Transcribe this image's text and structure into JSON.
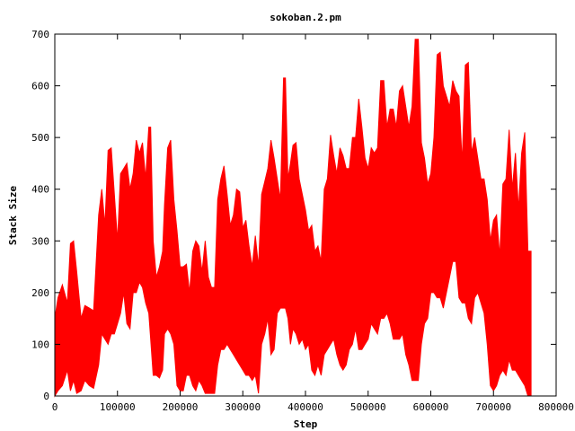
{
  "chart_data": {
    "type": "line",
    "title": "sokoban.2.pm",
    "xlabel": "Step",
    "ylabel": "Stack Size",
    "xlim": [
      0,
      800000
    ],
    "ylim": [
      0,
      700
    ],
    "xticks": [
      0,
      100000,
      200000,
      300000,
      400000,
      500000,
      600000,
      700000,
      800000
    ],
    "yticks": [
      0,
      100,
      200,
      300,
      400,
      500,
      600,
      700
    ],
    "grid": false,
    "legend": "none",
    "series": [
      {
        "color": "#ff0000",
        "x_end": 760000,
        "upper": [
          [
            0,
            150
          ],
          [
            5000,
            190
          ],
          [
            12000,
            215
          ],
          [
            20000,
            180
          ],
          [
            25000,
            295
          ],
          [
            30000,
            300
          ],
          [
            35000,
            240
          ],
          [
            42000,
            150
          ],
          [
            48000,
            175
          ],
          [
            55000,
            170
          ],
          [
            62000,
            165
          ],
          [
            70000,
            350
          ],
          [
            75000,
            400
          ],
          [
            80000,
            330
          ],
          [
            85000,
            475
          ],
          [
            90000,
            480
          ],
          [
            95000,
            390
          ],
          [
            100000,
            300
          ],
          [
            105000,
            430
          ],
          [
            110000,
            440
          ],
          [
            115000,
            450
          ],
          [
            120000,
            400
          ],
          [
            125000,
            430
          ],
          [
            130000,
            495
          ],
          [
            135000,
            470
          ],
          [
            140000,
            490
          ],
          [
            145000,
            420
          ],
          [
            150000,
            520
          ],
          [
            153000,
            520
          ],
          [
            157000,
            300
          ],
          [
            162000,
            230
          ],
          [
            167000,
            250
          ],
          [
            172000,
            280
          ],
          [
            175000,
            370
          ],
          [
            180000,
            480
          ],
          [
            185000,
            495
          ],
          [
            190000,
            380
          ],
          [
            195000,
            320
          ],
          [
            200000,
            250
          ],
          [
            205000,
            250
          ],
          [
            210000,
            255
          ],
          [
            215000,
            200
          ],
          [
            220000,
            280
          ],
          [
            225000,
            300
          ],
          [
            230000,
            290
          ],
          [
            235000,
            240
          ],
          [
            240000,
            300
          ],
          [
            245000,
            230
          ],
          [
            250000,
            210
          ],
          [
            255000,
            210
          ],
          [
            260000,
            380
          ],
          [
            265000,
            420
          ],
          [
            270000,
            445
          ],
          [
            275000,
            390
          ],
          [
            280000,
            330
          ],
          [
            285000,
            350
          ],
          [
            290000,
            400
          ],
          [
            295000,
            395
          ],
          [
            300000,
            325
          ],
          [
            305000,
            340
          ],
          [
            310000,
            290
          ],
          [
            315000,
            250
          ],
          [
            320000,
            310
          ],
          [
            325000,
            250
          ],
          [
            330000,
            390
          ],
          [
            335000,
            415
          ],
          [
            340000,
            440
          ],
          [
            345000,
            495
          ],
          [
            350000,
            460
          ],
          [
            355000,
            420
          ],
          [
            360000,
            380
          ],
          [
            365000,
            615
          ],
          [
            368000,
            615
          ],
          [
            372000,
            420
          ],
          [
            376000,
            450
          ],
          [
            380000,
            485
          ],
          [
            385000,
            490
          ],
          [
            390000,
            420
          ],
          [
            395000,
            390
          ],
          [
            400000,
            360
          ],
          [
            405000,
            320
          ],
          [
            410000,
            330
          ],
          [
            415000,
            280
          ],
          [
            420000,
            290
          ],
          [
            425000,
            260
          ],
          [
            430000,
            400
          ],
          [
            435000,
            420
          ],
          [
            440000,
            505
          ],
          [
            445000,
            465
          ],
          [
            450000,
            430
          ],
          [
            455000,
            480
          ],
          [
            460000,
            465
          ],
          [
            465000,
            440
          ],
          [
            470000,
            440
          ],
          [
            475000,
            500
          ],
          [
            480000,
            500
          ],
          [
            485000,
            575
          ],
          [
            490000,
            520
          ],
          [
            495000,
            460
          ],
          [
            500000,
            440
          ],
          [
            505000,
            480
          ],
          [
            510000,
            470
          ],
          [
            515000,
            480
          ],
          [
            520000,
            610
          ],
          [
            525000,
            610
          ],
          [
            530000,
            520
          ],
          [
            535000,
            555
          ],
          [
            540000,
            555
          ],
          [
            545000,
            520
          ],
          [
            550000,
            590
          ],
          [
            555000,
            600
          ],
          [
            560000,
            560
          ],
          [
            565000,
            520
          ],
          [
            570000,
            560
          ],
          [
            575000,
            690
          ],
          [
            580000,
            690
          ],
          [
            585000,
            490
          ],
          [
            590000,
            460
          ],
          [
            595000,
            410
          ],
          [
            600000,
            430
          ],
          [
            605000,
            500
          ],
          [
            610000,
            660
          ],
          [
            615000,
            665
          ],
          [
            620000,
            600
          ],
          [
            625000,
            580
          ],
          [
            630000,
            560
          ],
          [
            635000,
            610
          ],
          [
            640000,
            590
          ],
          [
            645000,
            580
          ],
          [
            650000,
            450
          ],
          [
            655000,
            640
          ],
          [
            660000,
            645
          ],
          [
            665000,
            470
          ],
          [
            670000,
            500
          ],
          [
            675000,
            460
          ],
          [
            680000,
            420
          ],
          [
            685000,
            420
          ],
          [
            690000,
            380
          ],
          [
            695000,
            300
          ],
          [
            700000,
            340
          ],
          [
            705000,
            350
          ],
          [
            710000,
            270
          ],
          [
            715000,
            410
          ],
          [
            720000,
            420
          ],
          [
            725000,
            515
          ],
          [
            730000,
            400
          ],
          [
            735000,
            470
          ],
          [
            740000,
            360
          ],
          [
            745000,
            470
          ],
          [
            750000,
            510
          ],
          [
            755000,
            280
          ],
          [
            760000,
            280
          ]
        ],
        "lower": [
          [
            0,
            0
          ],
          [
            5000,
            10
          ],
          [
            12000,
            20
          ],
          [
            20000,
            50
          ],
          [
            25000,
            10
          ],
          [
            30000,
            30
          ],
          [
            35000,
            5
          ],
          [
            42000,
            10
          ],
          [
            48000,
            30
          ],
          [
            55000,
            20
          ],
          [
            62000,
            15
          ],
          [
            70000,
            60
          ],
          [
            75000,
            120
          ],
          [
            80000,
            110
          ],
          [
            85000,
            100
          ],
          [
            90000,
            120
          ],
          [
            95000,
            120
          ],
          [
            100000,
            140
          ],
          [
            105000,
            160
          ],
          [
            110000,
            200
          ],
          [
            115000,
            140
          ],
          [
            120000,
            130
          ],
          [
            125000,
            200
          ],
          [
            130000,
            200
          ],
          [
            135000,
            220
          ],
          [
            140000,
            210
          ],
          [
            145000,
            180
          ],
          [
            150000,
            160
          ],
          [
            153000,
            110
          ],
          [
            157000,
            40
          ],
          [
            162000,
            40
          ],
          [
            167000,
            35
          ],
          [
            172000,
            50
          ],
          [
            175000,
            120
          ],
          [
            180000,
            130
          ],
          [
            185000,
            120
          ],
          [
            190000,
            100
          ],
          [
            195000,
            20
          ],
          [
            200000,
            10
          ],
          [
            205000,
            10
          ],
          [
            210000,
            40
          ],
          [
            215000,
            40
          ],
          [
            220000,
            20
          ],
          [
            225000,
            10
          ],
          [
            230000,
            30
          ],
          [
            235000,
            20
          ],
          [
            240000,
            5
          ],
          [
            245000,
            5
          ],
          [
            250000,
            5
          ],
          [
            255000,
            5
          ],
          [
            260000,
            60
          ],
          [
            265000,
            90
          ],
          [
            270000,
            90
          ],
          [
            275000,
            100
          ],
          [
            280000,
            90
          ],
          [
            285000,
            80
          ],
          [
            290000,
            70
          ],
          [
            295000,
            60
          ],
          [
            300000,
            50
          ],
          [
            305000,
            40
          ],
          [
            310000,
            40
          ],
          [
            315000,
            30
          ],
          [
            320000,
            40
          ],
          [
            325000,
            5
          ],
          [
            330000,
            100
          ],
          [
            335000,
            120
          ],
          [
            340000,
            150
          ],
          [
            345000,
            80
          ],
          [
            350000,
            90
          ],
          [
            355000,
            160
          ],
          [
            360000,
            170
          ],
          [
            365000,
            170
          ],
          [
            368000,
            170
          ],
          [
            372000,
            150
          ],
          [
            376000,
            100
          ],
          [
            380000,
            130
          ],
          [
            385000,
            120
          ],
          [
            390000,
            100
          ],
          [
            395000,
            110
          ],
          [
            400000,
            90
          ],
          [
            405000,
            100
          ],
          [
            410000,
            50
          ],
          [
            415000,
            40
          ],
          [
            420000,
            60
          ],
          [
            425000,
            40
          ],
          [
            430000,
            80
          ],
          [
            435000,
            90
          ],
          [
            440000,
            100
          ],
          [
            445000,
            110
          ],
          [
            450000,
            80
          ],
          [
            455000,
            60
          ],
          [
            460000,
            50
          ],
          [
            465000,
            60
          ],
          [
            470000,
            90
          ],
          [
            475000,
            100
          ],
          [
            480000,
            130
          ],
          [
            485000,
            90
          ],
          [
            490000,
            90
          ],
          [
            495000,
            100
          ],
          [
            500000,
            110
          ],
          [
            505000,
            140
          ],
          [
            510000,
            130
          ],
          [
            515000,
            120
          ],
          [
            520000,
            150
          ],
          [
            525000,
            150
          ],
          [
            530000,
            160
          ],
          [
            535000,
            140
          ],
          [
            540000,
            110
          ],
          [
            545000,
            110
          ],
          [
            550000,
            110
          ],
          [
            555000,
            120
          ],
          [
            560000,
            80
          ],
          [
            565000,
            60
          ],
          [
            570000,
            30
          ],
          [
            575000,
            30
          ],
          [
            580000,
            30
          ],
          [
            585000,
            100
          ],
          [
            590000,
            140
          ],
          [
            595000,
            150
          ],
          [
            600000,
            200
          ],
          [
            605000,
            200
          ],
          [
            610000,
            190
          ],
          [
            615000,
            190
          ],
          [
            620000,
            170
          ],
          [
            625000,
            200
          ],
          [
            630000,
            230
          ],
          [
            635000,
            260
          ],
          [
            640000,
            260
          ],
          [
            645000,
            190
          ],
          [
            650000,
            180
          ],
          [
            655000,
            180
          ],
          [
            660000,
            150
          ],
          [
            665000,
            140
          ],
          [
            670000,
            190
          ],
          [
            675000,
            200
          ],
          [
            680000,
            180
          ],
          [
            685000,
            160
          ],
          [
            690000,
            100
          ],
          [
            695000,
            20
          ],
          [
            700000,
            10
          ],
          [
            705000,
            20
          ],
          [
            710000,
            40
          ],
          [
            715000,
            50
          ],
          [
            720000,
            40
          ],
          [
            725000,
            70
          ],
          [
            730000,
            50
          ],
          [
            735000,
            50
          ],
          [
            740000,
            40
          ],
          [
            745000,
            30
          ],
          [
            750000,
            20
          ],
          [
            755000,
            0
          ],
          [
            760000,
            0
          ]
        ]
      }
    ]
  }
}
